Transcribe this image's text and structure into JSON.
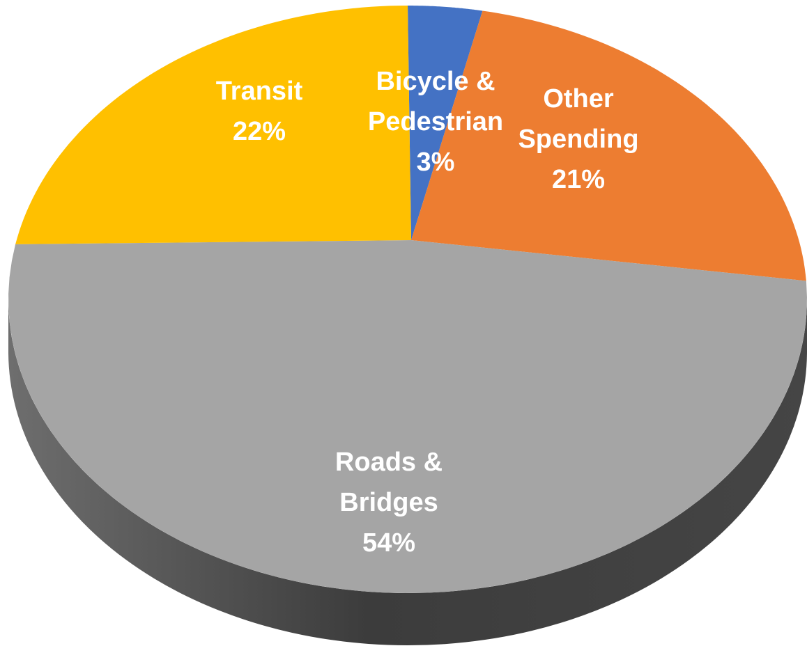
{
  "chart_data": {
    "type": "pie",
    "categories": [
      "Bicycle & Pedestrian",
      "Other Spending",
      "Roads & Bridges",
      "Transit"
    ],
    "values": [
      3,
      21,
      54,
      22
    ],
    "value_labels": [
      "3%",
      "21%",
      "54%",
      "22%"
    ],
    "colors": [
      "#4472c4",
      "#ed7d31",
      "#a5a5a5",
      "#ffc000"
    ]
  }
}
